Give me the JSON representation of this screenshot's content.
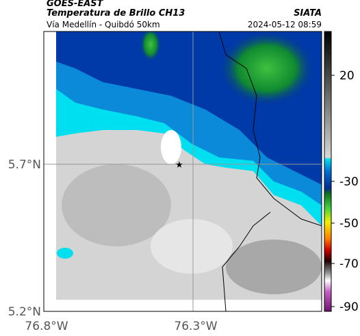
{
  "header": {
    "satellite": "GOES-EAST",
    "product": "Temperatura de Brillo CH13",
    "agency": "SIATA",
    "route": "Vía Medellín - Quibdó 50km",
    "datetime": "2024-05-12 08:59"
  },
  "map": {
    "lat_labels": [
      "5.7°N",
      "5.2°N"
    ],
    "lon_labels": [
      "76.8°W",
      "76.3°W"
    ]
  },
  "colorbar": {
    "labels": [
      "20",
      "-30",
      "-50",
      "-70",
      "-90"
    ]
  }
}
